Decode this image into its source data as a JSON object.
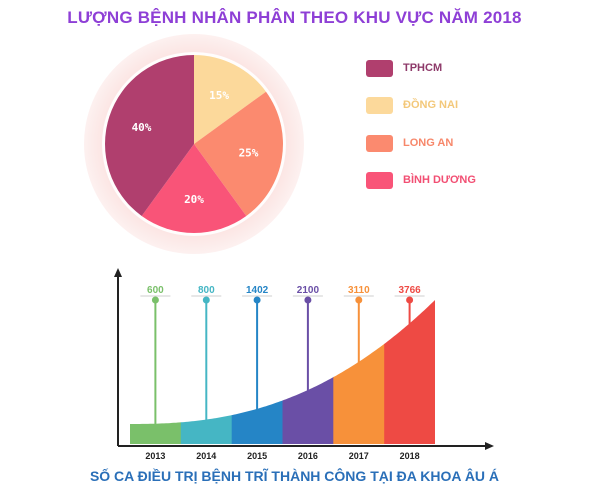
{
  "title": "LƯỢNG BỆNH NHÂN PHÂN THEO KHU VỰC NĂM 2018",
  "footer": "SỐ CA ĐIỀU TRỊ BỆNH TRĨ THÀNH CÔNG TẠI ĐA KHOA ÂU Á",
  "chart_data": [
    {
      "type": "pie",
      "title": "LƯỢNG BỆNH NHÂN PHÂN THEO KHU VỰC NĂM 2018",
      "legend_position": "right",
      "slices": [
        {
          "label": "TPHCM",
          "value": 40,
          "display": "40%",
          "color": "#b03f6e",
          "text_color": "#8e3a6a"
        },
        {
          "label": "ĐỒNG NAI",
          "value": 15,
          "display": "15%",
          "color": "#fcd99b",
          "text_color": "#f3c87a"
        },
        {
          "label": "LONG AN",
          "value": 25,
          "display": "25%",
          "color": "#fb8a6f",
          "text_color": "#f7876a"
        },
        {
          "label": "BÌNH DƯƠNG",
          "value": 20,
          "display": "20%",
          "color": "#f95478",
          "text_color": "#f24f73"
        }
      ]
    },
    {
      "type": "area",
      "title": "SỐ CA ĐIỀU TRỊ BỆNH TRĨ THÀNH CÔNG TẠI ĐA KHOA ÂU Á",
      "categories": [
        "2013",
        "2014",
        "2015",
        "2016",
        "2017",
        "2018"
      ],
      "values": [
        600,
        800,
        1402,
        2100,
        3110,
        3766
      ],
      "value_labels": [
        "600",
        "800",
        "1402",
        "2100",
        "3110",
        "3766"
      ],
      "colors": [
        "#7ac06a",
        "#45b6c4",
        "#2585c6",
        "#6a4fa6",
        "#f7913a",
        "#ee4a44"
      ],
      "grid": false
    }
  ]
}
